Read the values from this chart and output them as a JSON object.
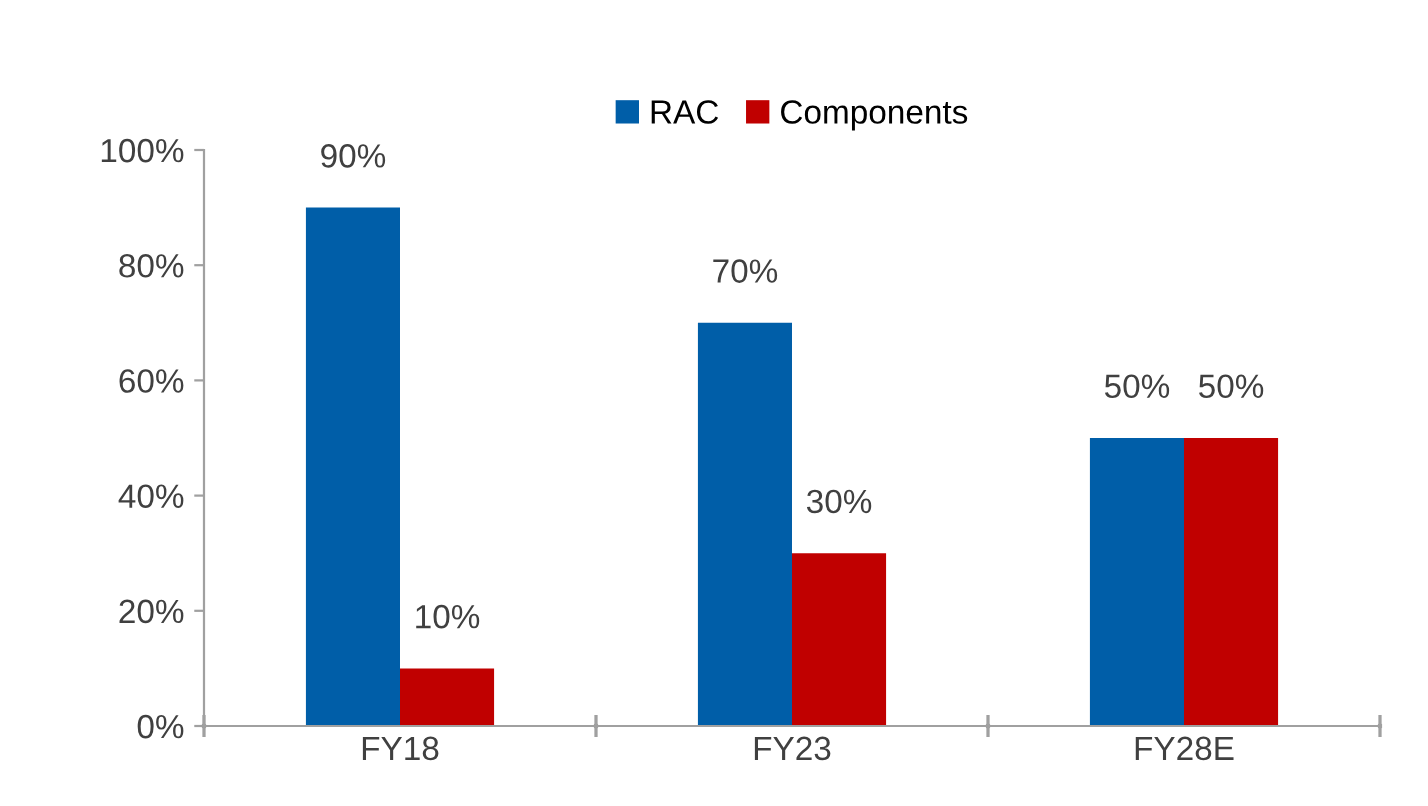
{
  "chart_data": {
    "type": "bar",
    "categories": [
      "FY18",
      "FY23",
      "FY28E"
    ],
    "series": [
      {
        "name": "RAC",
        "color": "#005ea8",
        "values": [
          90,
          70,
          50
        ],
        "value_labels": [
          "90%",
          "70%",
          "50%"
        ]
      },
      {
        "name": "Components",
        "color": "#c00000",
        "values": [
          10,
          30,
          50
        ],
        "value_labels": [
          "10%",
          "30%",
          "50%"
        ]
      }
    ],
    "ylim": [
      0,
      100
    ],
    "yticks": [
      {
        "value": 0,
        "label": "0%"
      },
      {
        "value": 20,
        "label": "20%"
      },
      {
        "value": 40,
        "label": "40%"
      },
      {
        "value": 60,
        "label": "60%"
      },
      {
        "value": 80,
        "label": "80%"
      },
      {
        "value": 100,
        "label": "100%"
      }
    ],
    "grid": false,
    "legend": "top"
  }
}
